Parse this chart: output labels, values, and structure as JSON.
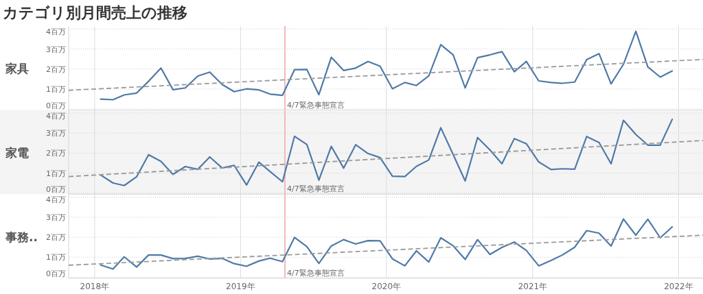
{
  "chart_data": [
    {
      "type": "line",
      "title": "カテゴリ別月間売上の推移",
      "ylabel": "家具",
      "x": [
        "2018-01-16",
        "2018-02-16",
        "2018-03-16",
        "2018-04-16",
        "2018-05-16",
        "2018-06-16",
        "2018-07-16",
        "2018-08-16",
        "2018-09-16",
        "2018-10-16",
        "2018-11-16",
        "2018-12-16",
        "2019-01-16",
        "2019-02-16",
        "2019-03-16",
        "2019-04-16",
        "2019-05-16",
        "2019-06-16",
        "2019-07-16",
        "2019-08-16",
        "2019-09-16",
        "2019-10-16",
        "2019-11-16",
        "2019-12-16",
        "2020-01-16",
        "2020-02-16",
        "2020-03-16",
        "2020-04-16",
        "2020-05-16",
        "2020-06-16",
        "2020-07-16",
        "2020-08-16",
        "2020-09-16",
        "2020-10-16",
        "2020-11-16",
        "2020-12-16",
        "2021-01-16",
        "2021-02-16",
        "2021-03-16",
        "2021-04-16",
        "2021-05-16",
        "2021-06-16",
        "2021-07-16",
        "2021-08-16",
        "2021-09-16",
        "2021-10-16",
        "2021-11-16",
        "2021-12-16"
      ],
      "series": [
        {
          "color": "#4e79a7",
          "values": [
            0.5,
            0.47,
            0.71,
            0.8,
            1.39,
            2.05,
            0.97,
            1.06,
            1.65,
            1.85,
            1.23,
            0.87,
            1.01,
            0.96,
            0.75,
            0.69,
            1.97,
            1.98,
            0.72,
            2.59,
            1.93,
            2.05,
            2.38,
            2.15,
            1.02,
            1.33,
            1.18,
            1.66,
            3.22,
            2.71,
            1.06,
            2.57,
            2.71,
            2.87,
            1.87,
            2.38,
            1.41,
            1.33,
            1.29,
            1.35,
            2.47,
            2.77,
            1.26,
            2.24,
            3.89,
            2.11,
            1.6,
            1.91
          ]
        },
        {
          "type": "line",
          "color": "#9a9a9a",
          "line_style": "dashed",
          "x": [
            "2017-10-28",
            "2022-03-03"
          ],
          "values": [
            0.94,
            2.48
          ]
        }
      ],
      "ref_lines": [
        {
          "axis": "x",
          "value": "2019-04-22",
          "label": "4/7緊急事態宣言",
          "color": "#f4b8b8"
        }
      ],
      "xlim": [
        "2017-10-28",
        "2022-03-03"
      ],
      "ylim": [
        -0.05,
        4.15
      ],
      "xticks": [
        {
          "value": "2018-01-01",
          "label": null
        },
        {
          "value": "2019-01-01",
          "label": null
        },
        {
          "value": "2020-01-01",
          "label": null
        },
        {
          "value": "2021-01-01",
          "label": null
        },
        {
          "value": "2022-01-01",
          "label": null
        }
      ],
      "yticks": [
        {
          "value": 0,
          "label": "0百万"
        },
        {
          "value": 1,
          "label": "1百万"
        },
        {
          "value": 2,
          "label": "2百万"
        },
        {
          "value": 3,
          "label": "3百万"
        },
        {
          "value": 4,
          "label": "4百万"
        }
      ],
      "grid": true,
      "tick_labels": "y"
    },
    {
      "type": "line",
      "ylabel": "家電",
      "x": [
        "2018-01-16",
        "2018-02-16",
        "2018-03-16",
        "2018-04-16",
        "2018-05-16",
        "2018-06-16",
        "2018-07-16",
        "2018-08-16",
        "2018-09-16",
        "2018-10-16",
        "2018-11-16",
        "2018-12-16",
        "2019-01-16",
        "2019-02-16",
        "2019-03-16",
        "2019-04-16",
        "2019-05-16",
        "2019-06-16",
        "2019-07-16",
        "2019-08-16",
        "2019-09-16",
        "2019-10-16",
        "2019-11-16",
        "2019-12-16",
        "2020-01-16",
        "2020-02-16",
        "2020-03-16",
        "2020-04-16",
        "2020-05-16",
        "2020-06-16",
        "2020-07-16",
        "2020-08-16",
        "2020-09-16",
        "2020-10-16",
        "2020-11-16",
        "2020-12-16",
        "2021-01-16",
        "2021-02-16",
        "2021-03-16",
        "2021-04-16",
        "2021-05-16",
        "2021-06-16",
        "2021-07-16",
        "2021-08-16",
        "2021-09-16",
        "2021-10-16",
        "2021-11-16",
        "2021-12-16"
      ],
      "series": [
        {
          "color": "#4e79a7",
          "values": [
            0.91,
            0.51,
            0.38,
            0.82,
            1.92,
            1.59,
            0.94,
            1.33,
            1.19,
            1.81,
            1.26,
            1.39,
            0.41,
            1.55,
            1.08,
            0.57,
            2.84,
            2.43,
            0.65,
            2.34,
            1.25,
            2.42,
            1.98,
            1.78,
            0.85,
            0.83,
            1.34,
            1.66,
            3.27,
            1.93,
            0.61,
            2.78,
            2.16,
            1.47,
            2.73,
            2.47,
            1.56,
            1.18,
            1.22,
            1.2,
            2.83,
            2.53,
            1.47,
            3.64,
            2.93,
            2.4,
            2.4,
            3.69
          ]
        },
        {
          "type": "line",
          "color": "#9a9a9a",
          "line_style": "dashed",
          "x": [
            "2017-10-28",
            "2022-03-03"
          ],
          "values": [
            0.83,
            2.63
          ]
        }
      ],
      "ref_lines": [
        {
          "axis": "x",
          "value": "2019-04-22",
          "label": "4/7緊急事態宣言",
          "color": "#f4b8b8"
        }
      ],
      "xlim": [
        "2017-10-28",
        "2022-03-03"
      ],
      "ylim": [
        -0.05,
        4.15
      ],
      "xticks": [
        {
          "value": "2018-01-01",
          "label": null
        },
        {
          "value": "2019-01-01",
          "label": null
        },
        {
          "value": "2020-01-01",
          "label": null
        },
        {
          "value": "2021-01-01",
          "label": null
        },
        {
          "value": "2022-01-01",
          "label": null
        }
      ],
      "yticks": [
        {
          "value": 0,
          "label": "0百万"
        },
        {
          "value": 1,
          "label": "1百万"
        },
        {
          "value": 2,
          "label": "2百万"
        },
        {
          "value": 3,
          "label": "3百万"
        },
        {
          "value": 4,
          "label": "4百万"
        }
      ],
      "grid": true,
      "tick_labels": "y"
    },
    {
      "type": "line",
      "ylabel": "事務..",
      "x": [
        "2018-01-16",
        "2018-02-16",
        "2018-03-16",
        "2018-04-16",
        "2018-05-16",
        "2018-06-16",
        "2018-07-16",
        "2018-08-16",
        "2018-09-16",
        "2018-10-16",
        "2018-11-16",
        "2018-12-16",
        "2019-01-16",
        "2019-02-16",
        "2019-03-16",
        "2019-04-16",
        "2019-05-16",
        "2019-06-16",
        "2019-07-16",
        "2019-08-16",
        "2019-09-16",
        "2019-10-16",
        "2019-11-16",
        "2019-12-16",
        "2020-01-16",
        "2020-02-16",
        "2020-03-16",
        "2020-04-16",
        "2020-05-16",
        "2020-06-16",
        "2020-07-16",
        "2020-08-16",
        "2020-09-16",
        "2020-10-16",
        "2020-11-16",
        "2020-12-16",
        "2021-01-16",
        "2021-02-16",
        "2021-03-16",
        "2021-04-16",
        "2021-05-16",
        "2021-06-16",
        "2021-07-16",
        "2021-08-16",
        "2021-09-16",
        "2021-10-16",
        "2021-11-16",
        "2021-12-16"
      ],
      "series": [
        {
          "color": "#4e79a7",
          "values": [
            0.61,
            0.41,
            1.02,
            0.51,
            1.11,
            1.11,
            0.93,
            0.94,
            1.05,
            0.91,
            0.94,
            0.68,
            0.55,
            0.81,
            0.95,
            0.78,
            1.99,
            1.53,
            0.69,
            1.56,
            1.88,
            1.66,
            1.83,
            1.82,
            0.92,
            0.57,
            1.32,
            0.76,
            1.97,
            1.57,
            0.89,
            1.88,
            1.14,
            1.49,
            1.76,
            1.34,
            0.57,
            0.84,
            1.11,
            1.5,
            2.33,
            2.2,
            1.56,
            2.91,
            2.1,
            2.9,
            1.97,
            2.52
          ]
        },
        {
          "type": "line",
          "color": "#9a9a9a",
          "line_style": "dashed",
          "x": [
            "2017-10-28",
            "2022-03-03"
          ],
          "values": [
            0.6,
            2.1
          ]
        }
      ],
      "ref_lines": [
        {
          "axis": "x",
          "value": "2019-04-22",
          "label": "4/7緊急事態宣言",
          "color": "#f4b8b8"
        }
      ],
      "xlim": [
        "2017-10-28",
        "2022-03-03"
      ],
      "ylim": [
        -0.05,
        4.15
      ],
      "xticks": [
        {
          "value": "2018-01-01",
          "label": "2018年"
        },
        {
          "value": "2019-01-01",
          "label": "2019年"
        },
        {
          "value": "2020-01-01",
          "label": "2020年"
        },
        {
          "value": "2021-01-01",
          "label": "2021年"
        },
        {
          "value": "2022-01-01",
          "label": "2022年"
        }
      ],
      "yticks": [
        {
          "value": 0,
          "label": "0百万"
        },
        {
          "value": 1,
          "label": "1百万"
        },
        {
          "value": 2,
          "label": "2百万"
        },
        {
          "value": 3,
          "label": "3百万"
        },
        {
          "value": 4,
          "label": "4百万"
        }
      ],
      "grid": true
    }
  ]
}
